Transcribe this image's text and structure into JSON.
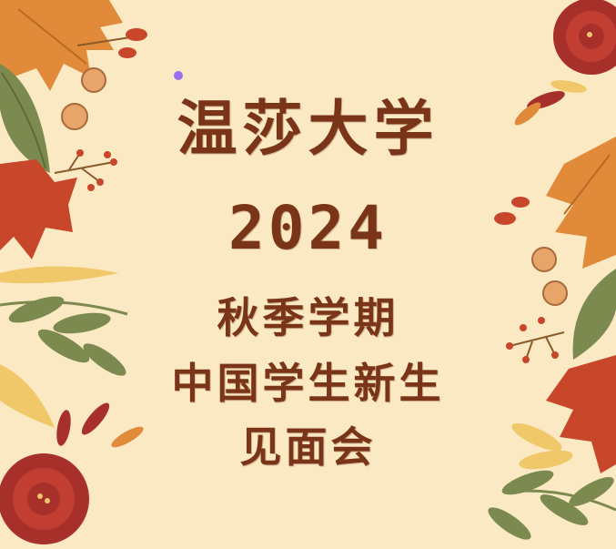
{
  "poster": {
    "university": "温莎大学",
    "year": "2024",
    "semester": "秋季学期",
    "event_line": "中国学生新生",
    "meeting": "见面会"
  },
  "colors": {
    "background": "#fbe9c4",
    "title_text": "#7a3417",
    "leaf_orange": "#e08a3a",
    "leaf_red": "#c8472a",
    "leaf_green": "#7d8a4f",
    "flower_red": "#a8302a",
    "leaf_yellow": "#f0c86a"
  },
  "icons": [
    "maple-leaf-icon",
    "rose-flower-icon",
    "berry-branch-icon",
    "seed-pod-icon",
    "willow-leaf-icon"
  ]
}
